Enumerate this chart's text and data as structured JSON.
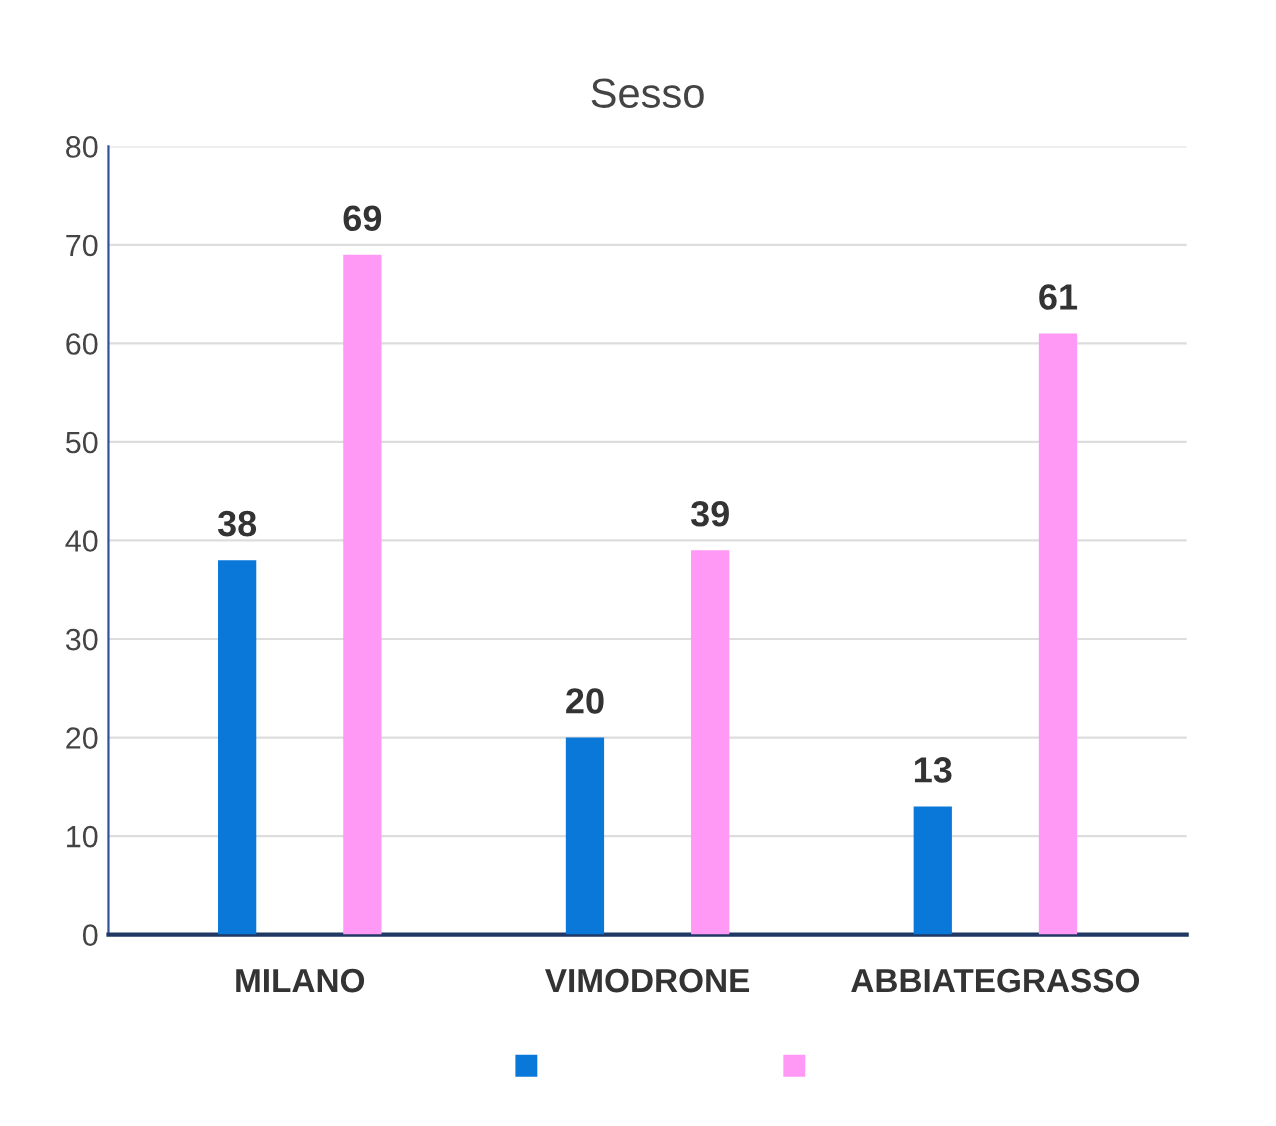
{
  "chart_data": {
    "type": "bar",
    "title": "Sesso",
    "categories": [
      "MILANO",
      "VIMODRONE",
      "ABBIATEGRASSO"
    ],
    "series": [
      {
        "color": "#0a78d8",
        "values": [
          38,
          20,
          13
        ]
      },
      {
        "color": "#ff99f5",
        "values": [
          69,
          39,
          61
        ]
      }
    ],
    "ylim": [
      0,
      80
    ],
    "yticks": [
      0,
      10,
      20,
      30,
      40,
      50,
      60,
      70,
      80
    ],
    "grid": "y",
    "data_labels": true
  }
}
